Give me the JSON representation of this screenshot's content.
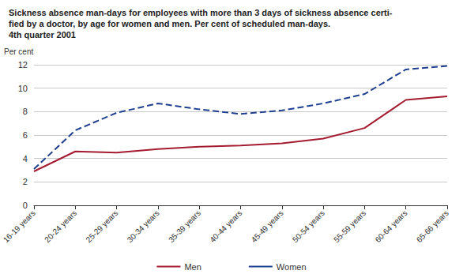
{
  "chart_data": {
    "type": "line",
    "title": "Sickness absence man-days for employees with more than 3 days of sickness absence certi-\nfied by a doctor, by age for women and men. Per cent of scheduled man-days.\n4th quarter 2001",
    "y_label": "Per cent",
    "categories": [
      "16-19 years",
      "20-24 years",
      "25-29 years",
      "30-34 years",
      "35-39 years",
      "40-44 years",
      "45-49 years",
      "50-54 years",
      "55-59 years",
      "60-64 years",
      "65-66 years"
    ],
    "series": [
      {
        "name": "Men",
        "color": "#a51c30",
        "line_style": "solid",
        "values": [
          2.9,
          4.6,
          4.5,
          4.8,
          5.0,
          5.1,
          5.3,
          5.7,
          6.6,
          9.0,
          9.3
        ]
      },
      {
        "name": "Women",
        "color": "#1f3f8f",
        "line_style": "dashed",
        "values": [
          3.1,
          6.4,
          7.9,
          8.7,
          8.2,
          7.8,
          8.1,
          8.7,
          9.5,
          11.6,
          11.9
        ]
      }
    ],
    "ylim": [
      0,
      12
    ],
    "yticks": [
      0,
      2,
      4,
      6,
      8,
      10,
      12
    ],
    "grid": true,
    "legend": "bottom"
  }
}
